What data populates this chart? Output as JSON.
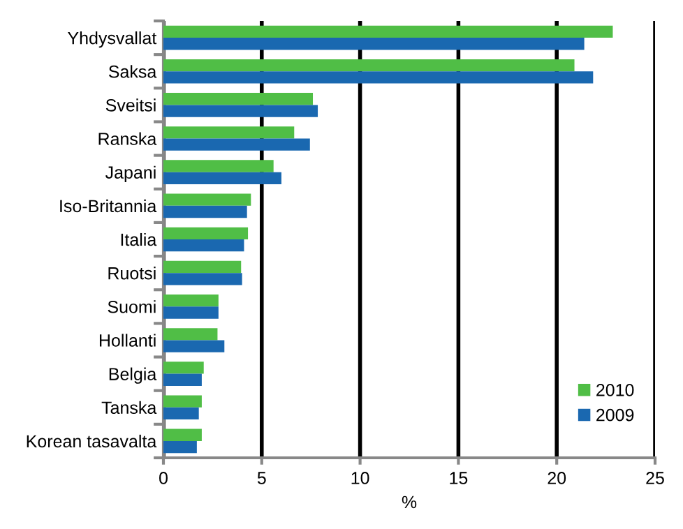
{
  "chart_data": {
    "type": "bar",
    "orientation": "horizontal",
    "xlabel": "%",
    "categories": [
      "Yhdysvallat",
      "Saksa",
      "Sveitsi",
      "Ranska",
      "Japani",
      "Iso-Britannia",
      "Italia",
      "Ruotsi",
      "Suomi",
      "Hollanti",
      "Belgia",
      "Tanska",
      "Korean tasavalta"
    ],
    "series": [
      {
        "name": "2010",
        "color": "#50be46",
        "values": [
          22.85,
          20.9,
          7.6,
          6.65,
          5.6,
          4.45,
          4.3,
          3.95,
          2.8,
          2.75,
          2.05,
          1.95,
          1.95
        ]
      },
      {
        "name": "2009",
        "color": "#1a68b0",
        "values": [
          21.4,
          21.85,
          7.85,
          7.45,
          6.0,
          4.25,
          4.1,
          4.0,
          2.8,
          3.1,
          1.95,
          1.8,
          1.7
        ]
      }
    ],
    "xlim": [
      0,
      25
    ],
    "xticks": [
      0,
      5,
      10,
      15,
      20,
      25
    ],
    "grid": "x",
    "legend": "bottom right"
  }
}
